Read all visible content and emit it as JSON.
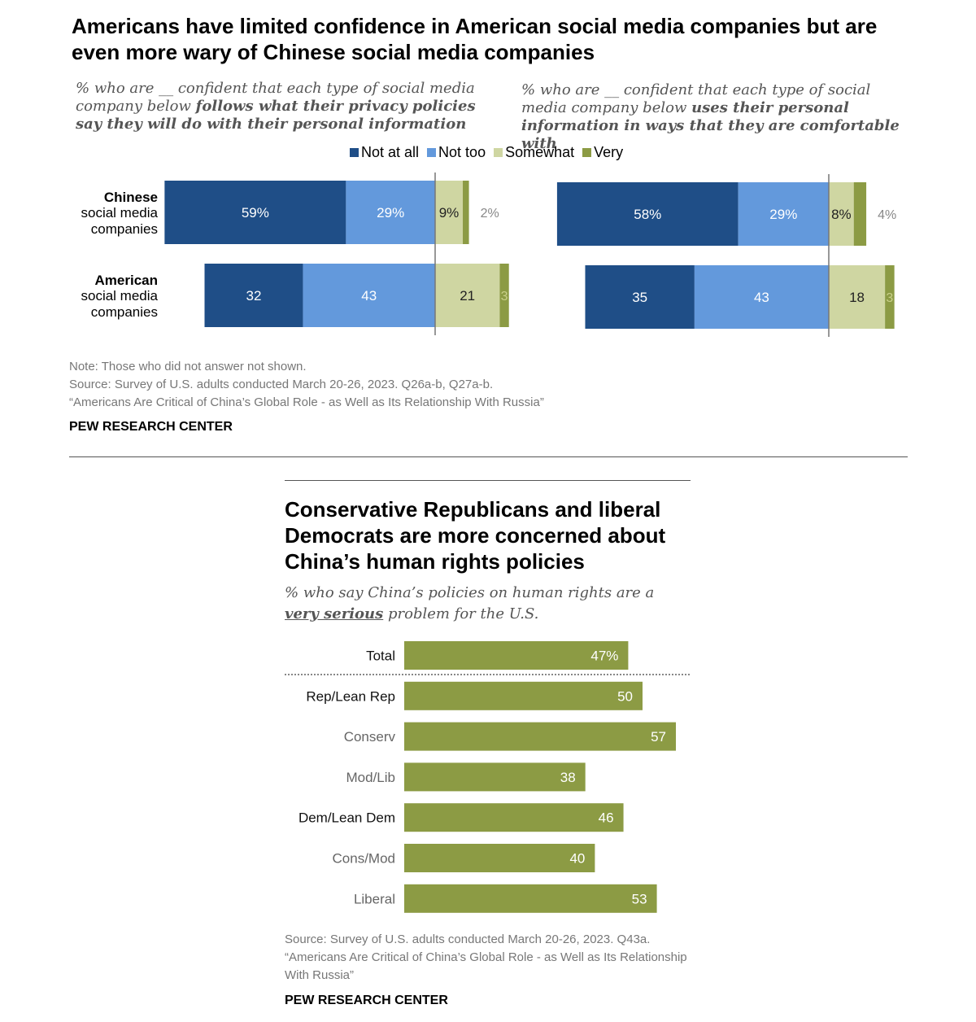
{
  "chart1": {
    "title": "Americans have limited confidence in American social media companies but are even more wary of Chinese social media companies",
    "left_subtitle": {
      "prefix": "% who are __ confident that each type of social media company below ",
      "emphasis": "follows what their privacy policies say they will do with their personal information"
    },
    "right_subtitle": {
      "prefix": "% who are __ confident that each type of social media company below ",
      "emphasis": "uses their personal information in ways that they are comfortable with"
    },
    "legend": [
      {
        "label": "Not at all",
        "color": "#1f4e87"
      },
      {
        "label": "Not too",
        "color": "#6399dc"
      },
      {
        "label": "Somewhat",
        "color": "#cfd6a2"
      },
      {
        "label": "Very",
        "color": "#8c9b44"
      }
    ],
    "note": "Note: Those who did not answer not shown.",
    "source": "Source: Survey of U.S. adults conducted March 20-26, 2023. Q26a-b, Q27a-b.",
    "report": "“Americans Are Critical of China’s Global Role - as Well as Its Relationship With Russia”",
    "brand": "PEW RESEARCH CENTER"
  },
  "chart2": {
    "title": "Conservative Republicans and liberal Democrats are more concerned about China’s human rights policies",
    "subtitle_prefix": "% who say China’s policies on human rights are a ",
    "subtitle_emphasis": "very serious",
    "subtitle_suffix": " problem for the U.S.",
    "source": "Source: Survey of U.S. adults conducted March 20-26, 2023. Q43a.",
    "report": "“Americans Are Critical of China’s Global Role - as Well as Its Relationship With Russia”",
    "brand": "PEW RESEARCH CENTER"
  },
  "chart_data": [
    {
      "type": "bar",
      "stacked": "diverging",
      "categories_bold": [
        "Chinese",
        "American"
      ],
      "categories_rest": [
        "social media companies",
        "social media companies"
      ],
      "panels": [
        {
          "series": [
            {
              "name": "Not at all",
              "values": [
                59,
                32
              ],
              "labels": [
                "59%",
                "32"
              ],
              "color": "#1f4e87"
            },
            {
              "name": "Not too",
              "values": [
                29,
                43
              ],
              "labels": [
                "29%",
                "43"
              ],
              "color": "#6399dc"
            },
            {
              "name": "Somewhat",
              "values": [
                9,
                21
              ],
              "labels": [
                "9%",
                "21"
              ],
              "color": "#cfd6a2"
            },
            {
              "name": "Very",
              "values": [
                2,
                3
              ],
              "labels": [
                "2%",
                "3"
              ],
              "color": "#8c9b44"
            }
          ]
        },
        {
          "series": [
            {
              "name": "Not at all",
              "values": [
                58,
                35
              ],
              "labels": [
                "58%",
                "35"
              ],
              "color": "#1f4e87"
            },
            {
              "name": "Not too",
              "values": [
                29,
                43
              ],
              "labels": [
                "29%",
                "43"
              ],
              "color": "#6399dc"
            },
            {
              "name": "Somewhat",
              "values": [
                8,
                18
              ],
              "labels": [
                "8%",
                "18"
              ],
              "color": "#cfd6a2"
            },
            {
              "name": "Very",
              "values": [
                4,
                3
              ],
              "labels": [
                "4%",
                "3"
              ],
              "color": "#8c9b44"
            }
          ]
        }
      ]
    },
    {
      "type": "bar",
      "orientation": "horizontal",
      "categories": [
        "Total",
        "Rep/Lean Rep",
        "Conserv",
        "Mod/Lib",
        "Dem/Lean Dem",
        "Cons/Mod",
        "Liberal"
      ],
      "values": [
        47,
        50,
        57,
        38,
        46,
        40,
        53
      ],
      "labels": [
        "47%",
        "50",
        "57",
        "38",
        "46",
        "40",
        "53"
      ],
      "color": "#8c9b44"
    }
  ]
}
